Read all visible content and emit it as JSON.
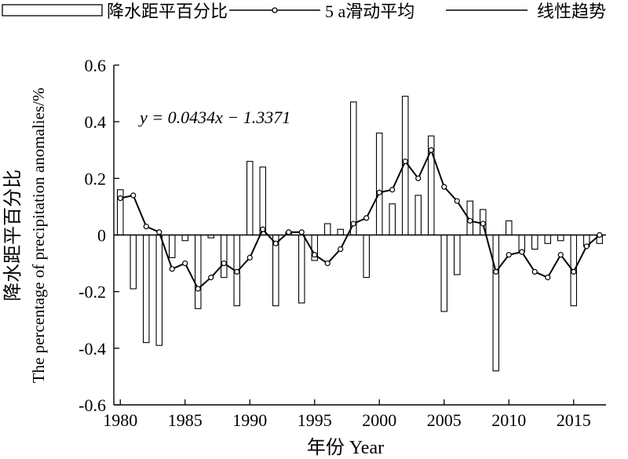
{
  "chart_data": {
    "type": "bar",
    "legend": {
      "position": "top",
      "entries": [
        {
          "label": "降水距平百分比",
          "kind": "bar"
        },
        {
          "label": "5 a滑动平均",
          "kind": "line-marker"
        },
        {
          "label": "线性趋势",
          "kind": "line"
        }
      ]
    },
    "equation": "y = 0.0434x −  1.3371",
    "ylabel_zh": "降水距平百分比",
    "ylabel_en": "The percentage of precipitation anomalies/%",
    "xlabel": "年份 Year",
    "ylim": [
      -0.6,
      0.6
    ],
    "yticks": [
      {
        "v": 0.6,
        "label": "0.6"
      },
      {
        "v": 0.4,
        "label": "0.4"
      },
      {
        "v": 0.2,
        "label": "0.2"
      },
      {
        "v": 0,
        "label": "0"
      },
      {
        "v": -0.2,
        "label": "-0.2"
      },
      {
        "v": -0.4,
        "label": "-0.4"
      },
      {
        "v": -0.6,
        "label": "-0.6"
      }
    ],
    "xlim": [
      1979.5,
      2017.5
    ],
    "xticks": [
      {
        "v": 1980,
        "label": "1980"
      },
      {
        "v": 1985,
        "label": "1985"
      },
      {
        "v": 1990,
        "label": "1990"
      },
      {
        "v": 1995,
        "label": "1995"
      },
      {
        "v": 2000,
        "label": "2000"
      },
      {
        "v": 2005,
        "label": "2005"
      },
      {
        "v": 2010,
        "label": "2010"
      },
      {
        "v": 2015,
        "label": "2015"
      }
    ],
    "years": [
      1980,
      1981,
      1982,
      1983,
      1984,
      1985,
      1986,
      1987,
      1988,
      1989,
      1990,
      1991,
      1992,
      1993,
      1994,
      1995,
      1996,
      1997,
      1998,
      1999,
      2000,
      2001,
      2002,
      2003,
      2004,
      2005,
      2006,
      2007,
      2008,
      2009,
      2010,
      2011,
      2012,
      2013,
      2014,
      2015,
      2016,
      2017
    ],
    "series": [
      {
        "name": "降水距平百分比",
        "values": [
          0.16,
          -0.19,
          -0.38,
          -0.39,
          -0.08,
          -0.02,
          -0.26,
          -0.01,
          -0.15,
          -0.25,
          0.26,
          0.24,
          -0.25,
          0.01,
          -0.24,
          -0.09,
          0.04,
          0.02,
          0.47,
          -0.15,
          0.36,
          0.11,
          0.49,
          0.14,
          0.35,
          -0.27,
          -0.14,
          0.12,
          0.09,
          -0.48,
          0.05,
          -0.06,
          -0.05,
          -0.03,
          -0.02,
          -0.25,
          -0.04,
          -0.03
        ]
      },
      {
        "name": "5 a滑动平均",
        "values": [
          0.13,
          0.14,
          0.03,
          0.01,
          -0.12,
          -0.1,
          -0.19,
          -0.15,
          -0.1,
          -0.13,
          -0.08,
          0.02,
          -0.03,
          0.01,
          0.01,
          -0.07,
          -0.1,
          -0.05,
          0.04,
          0.06,
          0.15,
          0.16,
          0.26,
          0.2,
          0.3,
          0.17,
          0.12,
          0.05,
          0.04,
          -0.13,
          -0.07,
          -0.06,
          -0.13,
          -0.15,
          -0.07,
          -0.13,
          -0.04,
          0.0
        ]
      }
    ]
  }
}
